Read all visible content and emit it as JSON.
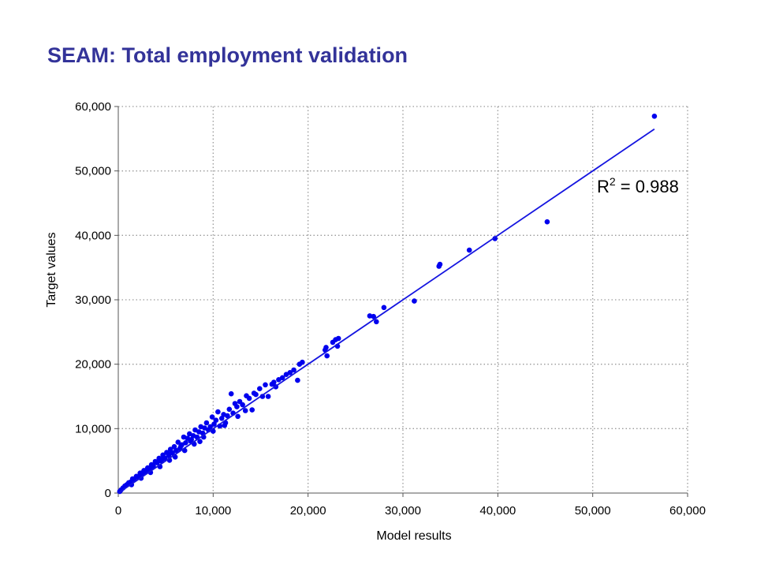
{
  "slide": {
    "title": "SEAM: Total employment validation"
  },
  "colors": {
    "title": "#333399",
    "points": "#0000EE",
    "trendline": "#1414E0",
    "grid": "#9a9a9a",
    "axis": "#555555"
  },
  "chart_data": {
    "type": "scatter",
    "xlabel": "Model results",
    "ylabel": "Target values",
    "xlim": [
      0,
      60000
    ],
    "ylim": [
      0,
      60000
    ],
    "xticks": [
      "0",
      "10,000",
      "20,000",
      "30,000",
      "40,000",
      "50,000",
      "60,000"
    ],
    "yticks": [
      "0",
      "10,000",
      "20,000",
      "30,000",
      "40,000",
      "50,000",
      "60,000"
    ],
    "grid": true,
    "annotation": {
      "text": "R",
      "superscript": "2",
      "suffix": " = 0.988"
    },
    "trendline": {
      "x": [
        0,
        56500
      ],
      "y": [
        0,
        56500
      ]
    },
    "series": [
      {
        "points": [
          [
            56500,
            58500
          ],
          [
            45200,
            42100
          ],
          [
            39700,
            39500
          ],
          [
            37000,
            37700
          ],
          [
            33900,
            35500
          ],
          [
            33800,
            35200
          ],
          [
            31200,
            29800
          ],
          [
            28000,
            28800
          ],
          [
            27200,
            26600
          ],
          [
            26900,
            27400
          ],
          [
            26500,
            27500
          ],
          [
            23200,
            24000
          ],
          [
            22900,
            23800
          ],
          [
            23100,
            22800
          ],
          [
            22600,
            23400
          ],
          [
            21900,
            22600
          ],
          [
            22000,
            21300
          ],
          [
            21800,
            22200
          ],
          [
            19400,
            20300
          ],
          [
            19100,
            20000
          ],
          [
            18900,
            17500
          ],
          [
            18500,
            19100
          ],
          [
            18100,
            18700
          ],
          [
            17700,
            18400
          ],
          [
            17300,
            17900
          ],
          [
            16900,
            17600
          ],
          [
            16600,
            16500
          ],
          [
            16400,
            17200
          ],
          [
            16200,
            16900
          ],
          [
            15800,
            15000
          ],
          [
            15500,
            16800
          ],
          [
            15200,
            15000
          ],
          [
            14900,
            16200
          ],
          [
            14500,
            15300
          ],
          [
            14300,
            15500
          ],
          [
            14100,
            12900
          ],
          [
            13800,
            14700
          ],
          [
            13500,
            15100
          ],
          [
            13100,
            13700
          ],
          [
            12800,
            14200
          ],
          [
            12500,
            13400
          ],
          [
            12300,
            13900
          ],
          [
            12100,
            12400
          ],
          [
            11900,
            15400
          ],
          [
            11700,
            13000
          ],
          [
            11500,
            12000
          ],
          [
            11300,
            10900
          ],
          [
            11100,
            12200
          ],
          [
            10900,
            11600
          ],
          [
            10700,
            10400
          ],
          [
            10500,
            12600
          ],
          [
            10300,
            11300
          ],
          [
            10100,
            10700
          ],
          [
            9900,
            11800
          ],
          [
            9700,
            10300
          ],
          [
            9500,
            9800
          ],
          [
            9300,
            10900
          ],
          [
            9100,
            10100
          ],
          [
            8900,
            9300
          ],
          [
            8700,
            10300
          ],
          [
            8500,
            9500
          ],
          [
            8300,
            8700
          ],
          [
            8100,
            9800
          ],
          [
            7900,
            8900
          ],
          [
            7700,
            8300
          ],
          [
            7500,
            9200
          ],
          [
            7300,
            8500
          ],
          [
            7100,
            7800
          ],
          [
            6900,
            8700
          ],
          [
            6700,
            7500
          ],
          [
            6500,
            6900
          ],
          [
            6300,
            7900
          ],
          [
            6100,
            6600
          ],
          [
            5900,
            7200
          ],
          [
            5700,
            6200
          ],
          [
            5500,
            6800
          ],
          [
            5300,
            5800
          ],
          [
            5100,
            6300
          ],
          [
            4900,
            5400
          ],
          [
            4700,
            5900
          ],
          [
            4500,
            5000
          ],
          [
            4300,
            5400
          ],
          [
            4100,
            4700
          ],
          [
            3900,
            4900
          ],
          [
            3700,
            4200
          ],
          [
            3500,
            4400
          ],
          [
            3300,
            3700
          ],
          [
            3100,
            3900
          ],
          [
            2900,
            3300
          ],
          [
            2700,
            3500
          ],
          [
            2500,
            2900
          ],
          [
            2300,
            3100
          ],
          [
            2100,
            2500
          ],
          [
            1900,
            2600
          ],
          [
            1700,
            2100
          ],
          [
            1500,
            2200
          ],
          [
            1300,
            1700
          ],
          [
            1100,
            1600
          ],
          [
            900,
            1300
          ],
          [
            700,
            1100
          ],
          [
            500,
            800
          ],
          [
            300,
            500
          ],
          [
            150,
            250
          ],
          [
            6000,
            5600
          ],
          [
            7000,
            6600
          ],
          [
            8000,
            7600
          ],
          [
            9000,
            8700
          ],
          [
            10000,
            9600
          ],
          [
            8600,
            8000
          ],
          [
            5400,
            5100
          ],
          [
            4400,
            4100
          ],
          [
            3400,
            3200
          ],
          [
            2400,
            2300
          ],
          [
            1400,
            1300
          ],
          [
            11200,
            10500
          ],
          [
            12600,
            11900
          ],
          [
            13400,
            12800
          ],
          [
            6600,
            7300
          ],
          [
            7600,
            8100
          ],
          [
            2600,
            3200
          ],
          [
            3600,
            4000
          ],
          [
            4600,
            5200
          ],
          [
            5600,
            6300
          ]
        ]
      }
    ]
  }
}
